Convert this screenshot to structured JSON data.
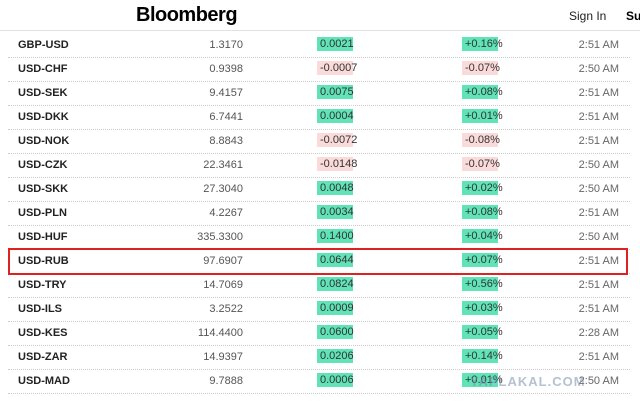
{
  "header": {
    "logo": "Bloomberg",
    "sign_in": "Sign In",
    "subscribe": "Su"
  },
  "table": {
    "rows": [
      [
        "GBP-USD",
        "1.3170",
        "0.0021",
        "+0.16%",
        "2:51 AM"
      ],
      [
        "USD-CHF",
        "0.9398",
        "-0.0007",
        "-0.07%",
        "2:50 AM"
      ],
      [
        "USD-SEK",
        "9.4157",
        "0.0075",
        "+0.08%",
        "2:51 AM"
      ],
      [
        "USD-DKK",
        "6.7441",
        "0.0004",
        "+0.01%",
        "2:51 AM"
      ],
      [
        "USD-NOK",
        "8.8843",
        "-0.0072",
        "-0.08%",
        "2:51 AM"
      ],
      [
        "USD-CZK",
        "22.3461",
        "-0.0148",
        "-0.07%",
        "2:50 AM"
      ],
      [
        "USD-SKK",
        "27.3040",
        "0.0048",
        "+0.02%",
        "2:50 AM"
      ],
      [
        "USD-PLN",
        "4.2267",
        "0.0034",
        "+0.08%",
        "2:51 AM"
      ],
      [
        "USD-HUF",
        "335.3300",
        "0.1400",
        "+0.04%",
        "2:50 AM"
      ],
      [
        "USD-RUB",
        "97.6907",
        "0.0644",
        "+0.07%",
        "2:51 AM"
      ],
      [
        "USD-TRY",
        "14.7069",
        "0.0824",
        "+0.56%",
        "2:51 AM"
      ],
      [
        "USD-ILS",
        "3.2522",
        "0.0009",
        "+0.03%",
        "2:51 AM"
      ],
      [
        "USD-KES",
        "114.4400",
        "0.0600",
        "+0.05%",
        "2:28 AM"
      ],
      [
        "USD-ZAR",
        "14.9397",
        "0.0206",
        "+0.14%",
        "2:51 AM"
      ],
      [
        "USD-MAD",
        "9.7888",
        "0.0006",
        "+0.01%",
        "2:50 AM"
      ]
    ]
  },
  "watermark": "YAPLAKAL.COM"
}
